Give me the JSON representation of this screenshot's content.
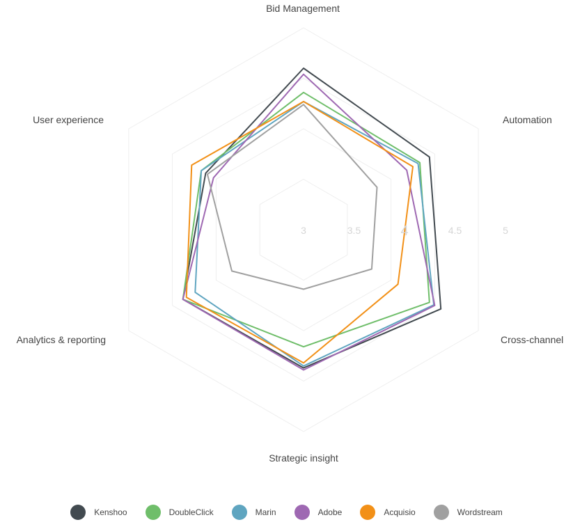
{
  "chart_data": {
    "type": "radar",
    "axes": [
      "Bid Management",
      "Automation",
      "Cross-channel",
      "Strategic insight",
      "Analytics & reporting",
      "User experience"
    ],
    "range": [
      3,
      5
    ],
    "ticks": [
      "3",
      "3.5",
      "4",
      "4.5",
      "5"
    ],
    "grid": true,
    "legend_position": "bottom",
    "series": [
      {
        "name": "Kenshoo",
        "color": "#424a50",
        "values": [
          4.6,
          4.44,
          4.57,
          4.37,
          4.38,
          4.12
        ]
      },
      {
        "name": "DoubleClick",
        "color": "#6fbe6a",
        "values": [
          4.36,
          4.33,
          4.44,
          4.16,
          4.38,
          4.17
        ]
      },
      {
        "name": "Marin",
        "color": "#5fa5c0",
        "values": [
          4.27,
          4.31,
          4.49,
          4.35,
          4.24,
          4.17
        ]
      },
      {
        "name": "Adobe",
        "color": "#9e68b2",
        "values": [
          4.54,
          4.18,
          4.5,
          4.39,
          4.38,
          4.03
        ]
      },
      {
        "name": "Acquisio",
        "color": "#f29017",
        "values": [
          4.27,
          4.25,
          4.08,
          4.32,
          4.34,
          4.28
        ]
      },
      {
        "name": "Wordstream",
        "color": "#a0a0a0",
        "values": [
          4.24,
          3.84,
          3.78,
          3.59,
          3.82,
          4.1
        ]
      }
    ]
  }
}
